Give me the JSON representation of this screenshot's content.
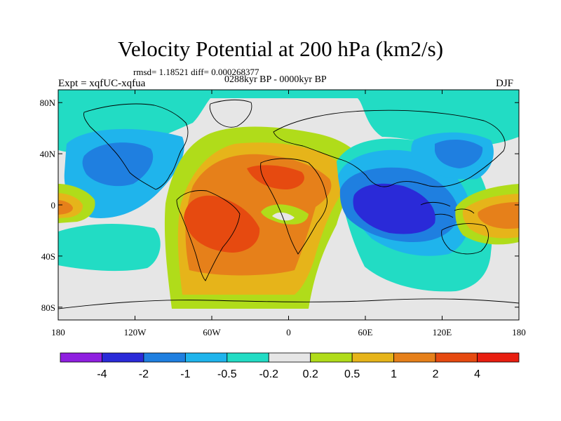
{
  "chart_data": {
    "type": "heatmap",
    "title": "Velocity Potential at 200 hPa (km2/s)",
    "subtitle": "rmsd= 1.18521 diff= 0.000268377",
    "period": "0288kyr BP - 0000kyr BP",
    "left_label": "Expt = xqfUC-xqfua",
    "right_label": "DJF",
    "xlim": [
      -180,
      180
    ],
    "ylim": [
      -90,
      90
    ],
    "x_ticks": [
      {
        "value": -180,
        "label": "180"
      },
      {
        "value": -120,
        "label": "120W"
      },
      {
        "value": -60,
        "label": "60W"
      },
      {
        "value": 0,
        "label": "0"
      },
      {
        "value": 60,
        "label": "60E"
      },
      {
        "value": 120,
        "label": "120E"
      },
      {
        "value": 180,
        "label": "180"
      }
    ],
    "y_ticks": [
      {
        "value": 80,
        "label": "80N"
      },
      {
        "value": 40,
        "label": "40N"
      },
      {
        "value": 0,
        "label": "0"
      },
      {
        "value": -40,
        "label": "40S"
      },
      {
        "value": -80,
        "label": "80S"
      }
    ],
    "levels": [
      -4,
      -2,
      -1,
      -0.5,
      -0.2,
      0.2,
      0.5,
      1,
      2,
      4
    ],
    "level_labels": [
      "-4",
      "-2",
      "-1",
      "-0.5",
      "-0.2",
      "0.2",
      "0.5",
      "1",
      "2",
      "4"
    ],
    "colors": [
      "#8f1fe0",
      "#2a2ad8",
      "#1f7fe0",
      "#1fb4ec",
      "#22dcc4",
      "#e6e6e6",
      "#b0dc1a",
      "#e6b41a",
      "#e6801a",
      "#e64a10",
      "#e81e10"
    ],
    "features": [
      {
        "name": "positive center",
        "lon": -55,
        "lat": -10,
        "value": 2.6
      },
      {
        "name": "positive center",
        "lon": -5,
        "lat": 22,
        "value": 2.2
      },
      {
        "name": "positive lobe",
        "lon": -160,
        "lat": -2,
        "value": 1.0
      },
      {
        "name": "positive lobe",
        "lon": 165,
        "lat": -5,
        "value": 1.3
      },
      {
        "name": "negative center",
        "lon": 85,
        "lat": 0,
        "value": -2.4
      },
      {
        "name": "negative center",
        "lon": -135,
        "lat": 35,
        "value": -1.3
      },
      {
        "name": "negative center",
        "lon": 120,
        "lat": 42,
        "value": -1.1
      }
    ]
  }
}
